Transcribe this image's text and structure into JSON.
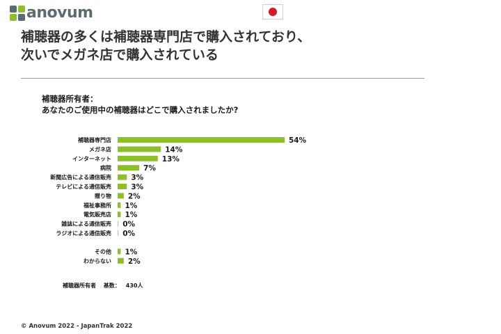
{
  "header": {
    "logo_text": "anovum",
    "title_line1": "補聴器の多くは補聴器専門店で購入されており、",
    "title_line2": "次いでメガネ店で購入されている"
  },
  "question": {
    "line1": "補聴器所有者：",
    "line2": "あなたのご使用中の補聴器はどこで購入されましたか?"
  },
  "chart_data": {
    "type": "bar",
    "orientation": "horizontal",
    "bar_color": "#8cbf2a",
    "categories": [
      "補聴器専門店",
      "メガネ店",
      "インターネット",
      "病院",
      "新聞広告による通信販売",
      "テレビによる通信販売",
      "贈り物",
      "福祉事務所",
      "電気販売店",
      "雑誌による通信販売",
      "ラジオによる通信販売",
      "その他",
      "わからない"
    ],
    "values": [
      54,
      14,
      13,
      7,
      3,
      3,
      2,
      1,
      1,
      0,
      0,
      1,
      2
    ],
    "value_labels": [
      "54%",
      "14%",
      "13%",
      "7%",
      "3%",
      "3%",
      "2%",
      "1%",
      "1%",
      "0%",
      "0%",
      "1%",
      "2%"
    ],
    "unit": "%",
    "xlim": [
      0,
      60
    ],
    "grid": false,
    "legend": "none"
  },
  "base": {
    "label": "補聴器所有者",
    "count_label": "基数：",
    "count": "430人"
  },
  "footer": {
    "copyright": "© Anovum 2022 - JapanTrak 2022"
  }
}
